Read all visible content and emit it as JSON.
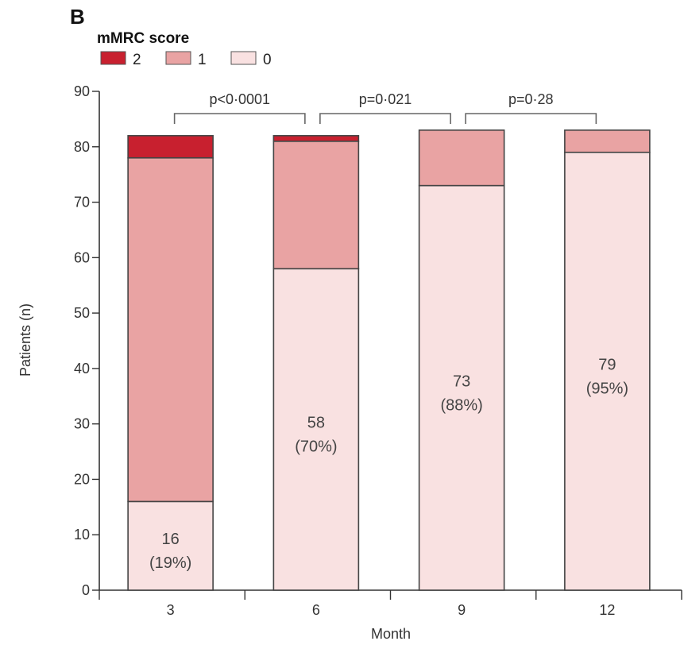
{
  "panel_label": "B",
  "chart_data": {
    "type": "bar",
    "stacked": true,
    "categories": [
      "3",
      "6",
      "9",
      "12"
    ],
    "series": [
      {
        "name": "0",
        "values": [
          16,
          58,
          73,
          79
        ],
        "color": "#f9e1e1"
      },
      {
        "name": "1",
        "values": [
          62,
          23,
          10,
          4
        ],
        "color": "#e9a3a3"
      },
      {
        "name": "2",
        "values": [
          4,
          1,
          0,
          0
        ],
        "color": "#c8202f"
      }
    ],
    "data_labels": [
      {
        "count": "16",
        "percent": "(19%)"
      },
      {
        "count": "58",
        "percent": "(70%)"
      },
      {
        "count": "73",
        "percent": "(88%)"
      },
      {
        "count": "79",
        "percent": "(95%)"
      }
    ],
    "comparisons": [
      {
        "from": "3",
        "to": "6",
        "label": "p<0·0001"
      },
      {
        "from": "6",
        "to": "9",
        "label": "p=0·021"
      },
      {
        "from": "9",
        "to": "12",
        "label": "p=0·28"
      }
    ],
    "legend_title": "mMRC score",
    "legend_order": [
      "2",
      "1",
      "0"
    ],
    "legend_position": "top-left",
    "xlabel": "Month",
    "ylabel": "Patients (n)",
    "ylim": [
      0,
      90
    ],
    "yticks": [
      0,
      10,
      20,
      30,
      40,
      50,
      60,
      70,
      80,
      90
    ],
    "grid": false
  }
}
